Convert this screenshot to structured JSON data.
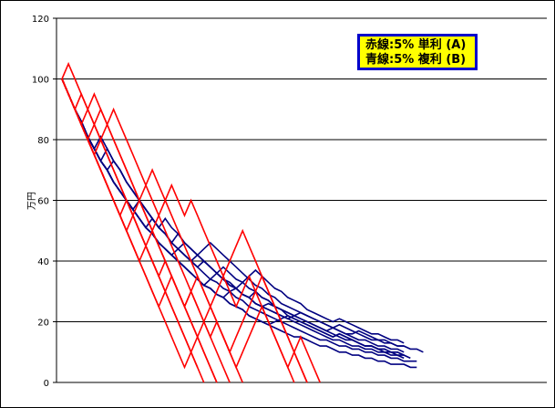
{
  "chart_data": {
    "type": "line",
    "title": "",
    "xlabel": "",
    "ylabel": "万円",
    "ylim": [
      0,
      120
    ],
    "yticks": [
      0,
      20,
      40,
      60,
      80,
      100,
      120
    ],
    "grid": true,
    "legend_position": "top-right",
    "legend": [
      "赤線:5% 単利 (A)",
      "青線:5% 複利 (B)"
    ],
    "x_unit_count": 76,
    "series_groups": [
      {
        "group": "A",
        "color": "#ff0000",
        "lines": [
          [
            100,
            105,
            100,
            95,
            90,
            85,
            80,
            75,
            70,
            65,
            60,
            55,
            50,
            45,
            40,
            35,
            30,
            25,
            20,
            15,
            10,
            5
          ],
          [
            100,
            95,
            90,
            85,
            80,
            85,
            90,
            85,
            80,
            75,
            70,
            65,
            60,
            55,
            50,
            45,
            40,
            35,
            30,
            25,
            20,
            15,
            10,
            5,
            0
          ],
          [
            100,
            95,
            90,
            95,
            90,
            85,
            80,
            75,
            70,
            65,
            60,
            55,
            50,
            45,
            40,
            35,
            30,
            25,
            20,
            15,
            10,
            5,
            0
          ],
          [
            100,
            95,
            90,
            85,
            80,
            75,
            70,
            65,
            60,
            55,
            60,
            55,
            50,
            45,
            40,
            35,
            40,
            35,
            30,
            25,
            20,
            15,
            10,
            5,
            0
          ],
          [
            100,
            95,
            90,
            85,
            90,
            95,
            90,
            85,
            80,
            75,
            70,
            65,
            60,
            55,
            50,
            45,
            40,
            35,
            30,
            25,
            30,
            25,
            20,
            15,
            10,
            5,
            0
          ],
          [
            100,
            95,
            90,
            85,
            80,
            75,
            80,
            85,
            90,
            85,
            80,
            75,
            70,
            65,
            60,
            55,
            50,
            45,
            40,
            35,
            30,
            25,
            20,
            15,
            20,
            15,
            10,
            5,
            0
          ],
          [
            100,
            95,
            90,
            85,
            80,
            75,
            70,
            65,
            60,
            55,
            50,
            55,
            60,
            65,
            70,
            65,
            60,
            55,
            50,
            45,
            40,
            35,
            30,
            25,
            20,
            15,
            10,
            15,
            20,
            25,
            30,
            35,
            30,
            25,
            20,
            15,
            10,
            5,
            0
          ],
          [
            100,
            95,
            90,
            85,
            80,
            75,
            70,
            65,
            60,
            55,
            50,
            45,
            40,
            35,
            30,
            25,
            30,
            35,
            30,
            25,
            30,
            35,
            30,
            25,
            20,
            15,
            10,
            5,
            10,
            15,
            20,
            25,
            20,
            15,
            10,
            5,
            0
          ],
          [
            100,
            95,
            90,
            85,
            80,
            75,
            70,
            65,
            60,
            55,
            50,
            45,
            40,
            45,
            50,
            55,
            60,
            65,
            60,
            55,
            60,
            55,
            50,
            45,
            40,
            35,
            40,
            45,
            50,
            45,
            40,
            35,
            30,
            25,
            20,
            15,
            10,
            5,
            0
          ],
          [
            100,
            95,
            90,
            85,
            80,
            75,
            70,
            65,
            60,
            55,
            50,
            45,
            40,
            35,
            30,
            25,
            20,
            15,
            10,
            5,
            10,
            15,
            20,
            25,
            30,
            35,
            30,
            25,
            30,
            35,
            30,
            25,
            20,
            15,
            10,
            5,
            10,
            15,
            10,
            5,
            0
          ]
        ]
      },
      {
        "group": "B",
        "color": "#000080",
        "lines": [
          [
            100,
            95,
            90,
            86,
            81,
            77,
            73,
            70,
            66,
            63,
            60,
            57,
            54,
            51,
            49,
            46,
            44,
            42,
            40,
            38,
            36,
            34,
            32,
            31,
            29,
            28,
            26,
            25,
            24,
            22,
            21,
            20,
            19,
            18,
            17,
            16,
            15,
            15,
            14,
            13,
            12,
            12,
            11,
            10,
            10,
            9,
            9,
            8,
            8,
            7,
            7,
            6,
            6,
            6,
            5,
            5
          ],
          [
            100,
            95,
            90,
            86,
            81,
            77,
            81,
            77,
            73,
            70,
            66,
            63,
            60,
            57,
            54,
            51,
            49,
            46,
            44,
            42,
            40,
            38,
            36,
            34,
            33,
            31,
            30,
            28,
            27,
            25,
            24,
            23,
            22,
            21,
            20,
            19,
            18,
            17,
            16,
            15,
            14,
            14,
            13,
            12,
            12,
            11,
            11,
            10,
            10,
            9,
            9,
            8,
            8,
            7,
            7,
            7
          ],
          [
            100,
            95,
            90,
            86,
            81,
            77,
            73,
            70,
            73,
            70,
            66,
            63,
            60,
            57,
            54,
            51,
            54,
            51,
            49,
            46,
            44,
            42,
            40,
            38,
            36,
            34,
            32,
            31,
            29,
            28,
            26,
            25,
            24,
            23,
            22,
            21,
            20,
            19,
            18,
            17,
            16,
            15,
            14,
            14,
            13,
            12,
            12,
            11,
            11,
            10,
            10,
            9,
            9,
            8
          ],
          [
            100,
            95,
            90,
            86,
            81,
            77,
            73,
            70,
            66,
            63,
            60,
            57,
            60,
            57,
            54,
            51,
            49,
            46,
            44,
            42,
            40,
            42,
            40,
            38,
            36,
            34,
            32,
            31,
            29,
            28,
            26,
            25,
            26,
            25,
            24,
            22,
            21,
            20,
            19,
            18,
            17,
            16,
            15,
            16,
            15,
            14,
            13,
            12,
            12,
            11,
            11,
            10,
            10,
            9
          ],
          [
            100,
            95,
            90,
            86,
            81,
            77,
            73,
            70,
            66,
            63,
            60,
            57,
            54,
            51,
            54,
            51,
            49,
            46,
            44,
            42,
            40,
            38,
            40,
            38,
            36,
            34,
            32,
            31,
            29,
            28,
            30,
            28,
            27,
            25,
            24,
            23,
            22,
            23,
            22,
            21,
            20,
            19,
            18,
            19,
            18,
            17,
            16,
            15,
            14,
            14,
            13,
            13,
            12,
            12,
            11,
            11,
            10
          ],
          [
            100,
            95,
            90,
            86,
            81,
            77,
            73,
            77,
            73,
            70,
            66,
            63,
            60,
            57,
            54,
            51,
            49,
            46,
            49,
            46,
            44,
            42,
            40,
            38,
            36,
            34,
            33,
            31,
            29,
            28,
            26,
            25,
            24,
            23,
            22,
            21,
            22,
            21,
            20,
            19,
            18,
            17,
            18,
            17,
            16,
            15,
            14,
            14,
            13,
            12,
            12,
            11,
            11,
            10
          ],
          [
            100,
            95,
            90,
            86,
            81,
            77,
            73,
            70,
            66,
            63,
            60,
            57,
            54,
            51,
            49,
            46,
            44,
            42,
            40,
            38,
            36,
            34,
            32,
            31,
            29,
            28,
            30,
            31,
            33,
            35,
            37,
            35,
            33,
            31,
            30,
            28,
            27,
            26,
            24,
            23,
            22,
            21,
            20,
            21,
            20,
            19,
            18,
            17,
            16,
            16,
            15,
            14,
            14,
            13
          ],
          [
            100,
            95,
            90,
            86,
            81,
            77,
            73,
            70,
            66,
            63,
            60,
            57,
            54,
            51,
            49,
            46,
            44,
            42,
            40,
            38,
            36,
            34,
            32,
            34,
            36,
            38,
            36,
            34,
            33,
            31,
            30,
            28,
            27,
            25,
            24,
            23,
            22,
            21,
            20,
            19,
            18,
            17,
            16,
            15,
            14,
            14,
            13,
            12,
            12,
            11,
            11,
            10,
            10,
            9
          ],
          [
            100,
            95,
            90,
            86,
            81,
            77,
            73,
            70,
            66,
            63,
            60,
            57,
            54,
            51,
            49,
            46,
            44,
            42,
            44,
            46,
            44,
            42,
            44,
            46,
            44,
            42,
            40,
            38,
            36,
            34,
            32,
            31,
            29,
            28,
            26,
            25,
            24,
            23,
            22,
            21,
            20,
            19,
            18,
            17,
            16,
            16,
            17,
            16,
            15,
            14,
            14,
            13,
            12,
            12
          ],
          [
            100,
            95,
            90,
            86,
            81,
            77,
            73,
            70,
            66,
            63,
            60,
            57,
            54,
            51,
            49,
            46,
            44,
            42,
            40,
            38,
            36,
            34,
            32,
            31,
            29,
            28,
            26,
            25,
            24,
            22,
            21,
            20,
            19,
            20,
            21,
            22,
            21,
            20,
            19,
            18,
            17,
            16,
            15,
            16,
            15,
            14,
            13,
            12,
            12,
            11,
            10,
            10,
            9,
            9,
            8
          ]
        ]
      }
    ]
  }
}
